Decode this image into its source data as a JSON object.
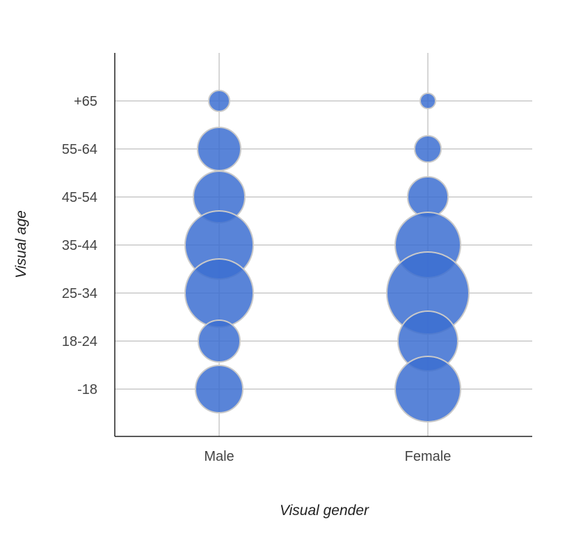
{
  "chart_data": {
    "type": "bubble",
    "xlabel": "Visual gender",
    "ylabel": "Visual age",
    "x_categories": [
      "Male",
      "Female"
    ],
    "y_categories": [
      "-18",
      "18-24",
      "25-34",
      "35-44",
      "45-54",
      "55-64",
      "+65"
    ],
    "grid": true,
    "bubble_color": "#3c6fd1",
    "points": [
      {
        "x": "Male",
        "y": "+65",
        "size": 15
      },
      {
        "x": "Male",
        "y": "55-64",
        "size": 31
      },
      {
        "x": "Male",
        "y": "45-54",
        "size": 37
      },
      {
        "x": "Male",
        "y": "35-44",
        "size": 49
      },
      {
        "x": "Male",
        "y": "25-34",
        "size": 49
      },
      {
        "x": "Male",
        "y": "18-24",
        "size": 30
      },
      {
        "x": "Male",
        "y": "-18",
        "size": 34
      },
      {
        "x": "Female",
        "y": "+65",
        "size": 11
      },
      {
        "x": "Female",
        "y": "55-64",
        "size": 19
      },
      {
        "x": "Female",
        "y": "45-54",
        "size": 29
      },
      {
        "x": "Female",
        "y": "35-44",
        "size": 47
      },
      {
        "x": "Female",
        "y": "25-34",
        "size": 59
      },
      {
        "x": "Female",
        "y": "18-24",
        "size": 43
      },
      {
        "x": "Female",
        "y": "-18",
        "size": 47
      }
    ]
  }
}
